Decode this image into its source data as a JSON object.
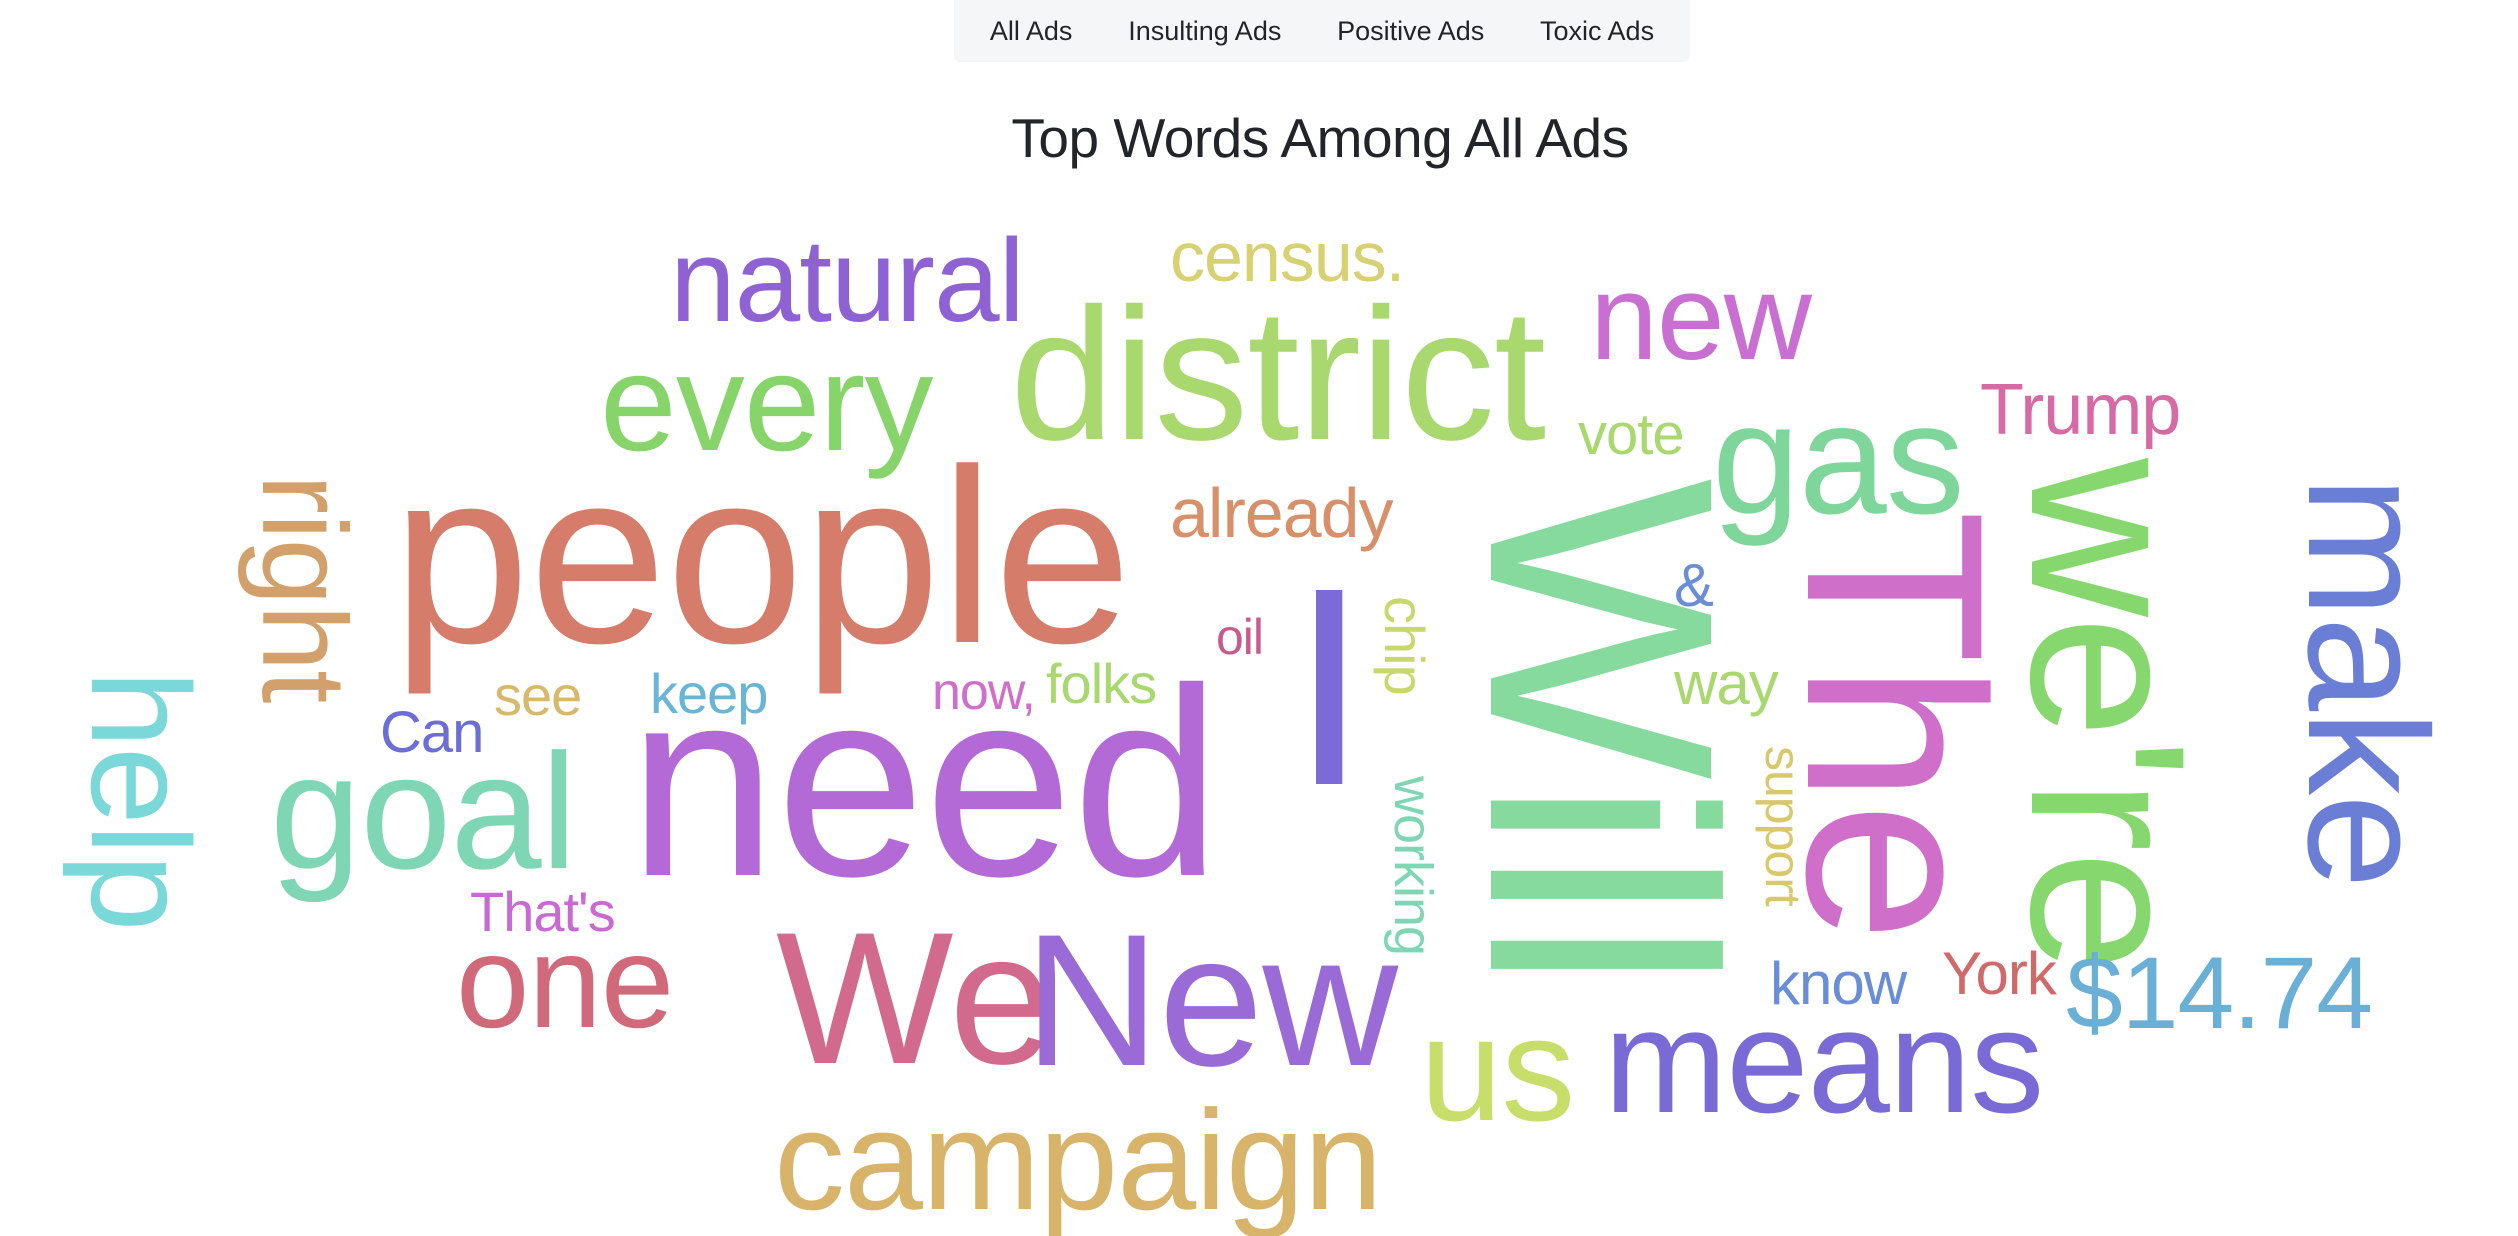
{
  "tabs": [
    {
      "label": "All Ads"
    },
    {
      "label": "Insulting Ads"
    },
    {
      "label": "Positive Ads"
    },
    {
      "label": "Toxic Ads"
    }
  ],
  "page_title": "Top Words Among All Ads",
  "words": [
    {
      "text": "natural",
      "color": "#8e62d2"
    },
    {
      "text": "census.",
      "color": "#d8d171"
    },
    {
      "text": "new",
      "color": "#c96fd2"
    },
    {
      "text": "every",
      "color": "#86d46a"
    },
    {
      "text": "district",
      "color": "#a8d86e"
    },
    {
      "text": "Trump",
      "color": "#d56aa4"
    },
    {
      "text": "vote",
      "color": "#a8d86e"
    },
    {
      "text": "gas",
      "color": "#7ed69b"
    },
    {
      "text": "people",
      "color": "#d57c6a"
    },
    {
      "text": "right",
      "color": "#d2a06a"
    },
    {
      "text": "already",
      "color": "#d8906a"
    },
    {
      "text": "I",
      "color": "#7c6ad6"
    },
    {
      "text": "Will",
      "color": "#86da9e"
    },
    {
      "text": "The",
      "color": "#cf6fc9"
    },
    {
      "text": "we're",
      "color": "#86d86e"
    },
    {
      "text": "make",
      "color": "#6a7ed6"
    },
    {
      "text": "&",
      "color": "#6a8ed6"
    },
    {
      "text": "oil",
      "color": "#c85a8e"
    },
    {
      "text": "chip",
      "color": "#c8d86a"
    },
    {
      "text": "way",
      "color": "#a8d86e"
    },
    {
      "text": "see",
      "color": "#d8b86a"
    },
    {
      "text": "keep",
      "color": "#6ab4d6"
    },
    {
      "text": "now,",
      "color": "#cf6fc9"
    },
    {
      "text": "folks",
      "color": "#a8d86e"
    },
    {
      "text": "Can",
      "color": "#6a6ed6"
    },
    {
      "text": "help",
      "color": "#7ad8d8"
    },
    {
      "text": "goal",
      "color": "#7ed6b4"
    },
    {
      "text": "need",
      "color": "#b46ad6"
    },
    {
      "text": "working",
      "color": "#7ed6b4"
    },
    {
      "text": "support",
      "color": "#d8c86a"
    },
    {
      "text": "That's",
      "color": "#c86ad2"
    },
    {
      "text": "one",
      "color": "#d06a7a"
    },
    {
      "text": "We",
      "color": "#d26a8e"
    },
    {
      "text": "New",
      "color": "#9a6ad6"
    },
    {
      "text": "know",
      "color": "#6a8ed6"
    },
    {
      "text": "York",
      "color": "#d06a6a"
    },
    {
      "text": "$14.74",
      "color": "#6ab0d6"
    },
    {
      "text": "us",
      "color": "#c8de6a"
    },
    {
      "text": "means",
      "color": "#7a6ad6"
    },
    {
      "text": "campaign",
      "color": "#d8b46a"
    }
  ]
}
